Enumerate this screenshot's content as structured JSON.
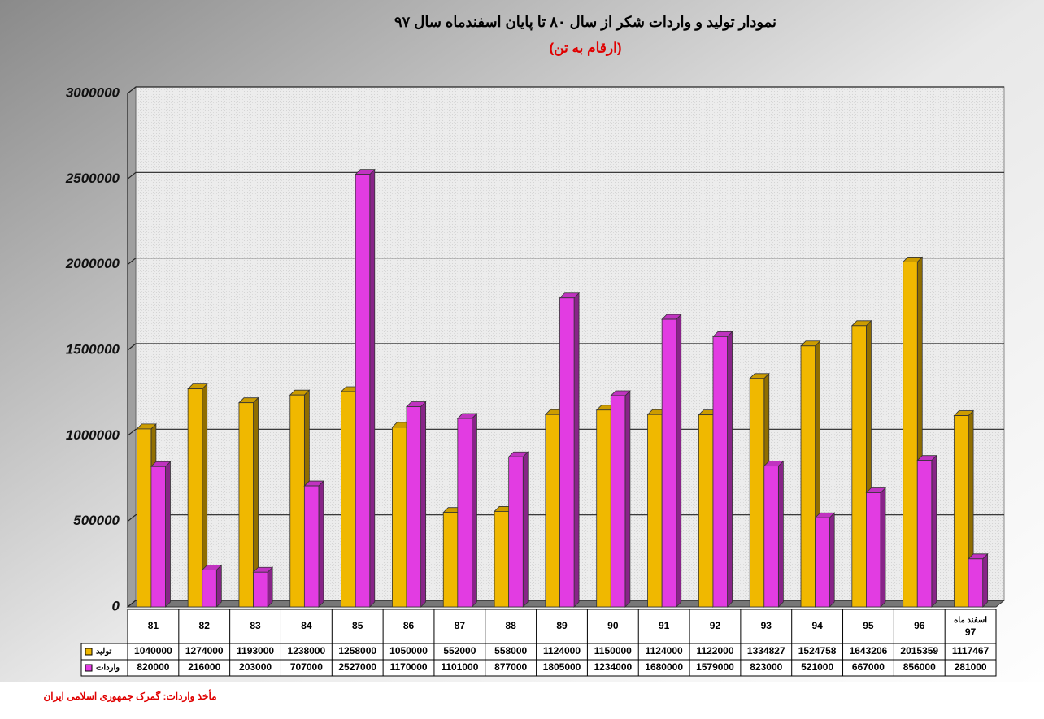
{
  "chart_data": {
    "type": "bar",
    "title": "نمودار تولید و واردات شکر از سال ۸۰ تا پایان اسفندماه سال ۹۷",
    "subtitle": "(ارقام به تن)",
    "source": "مأخذ واردات: گمرک جمهوری اسلامی ایران",
    "categories": [
      "81",
      "82",
      "83",
      "84",
      "85",
      "86",
      "87",
      "88",
      "89",
      "90",
      "91",
      "92",
      "93",
      "94",
      "95",
      "96",
      "اسفند ماه 97"
    ],
    "series": [
      {
        "name": "تولید",
        "color": "#f0b800",
        "values": [
          1040000,
          1274000,
          1193000,
          1238000,
          1258000,
          1050000,
          552000,
          558000,
          1124000,
          1150000,
          1124000,
          1122000,
          1334827,
          1524758,
          1643206,
          2015359,
          1117467
        ]
      },
      {
        "name": "واردات",
        "color": "#e23ce2",
        "values": [
          820000,
          216000,
          203000,
          707000,
          2527000,
          1170000,
          1101000,
          877000,
          1805000,
          1234000,
          1680000,
          1579000,
          823000,
          521000,
          667000,
          856000,
          281000
        ]
      }
    ],
    "ylim": [
      0,
      3000000
    ],
    "yticks": [
      0,
      500000,
      1000000,
      1500000,
      2000000,
      2500000,
      3000000
    ],
    "grid": true
  }
}
